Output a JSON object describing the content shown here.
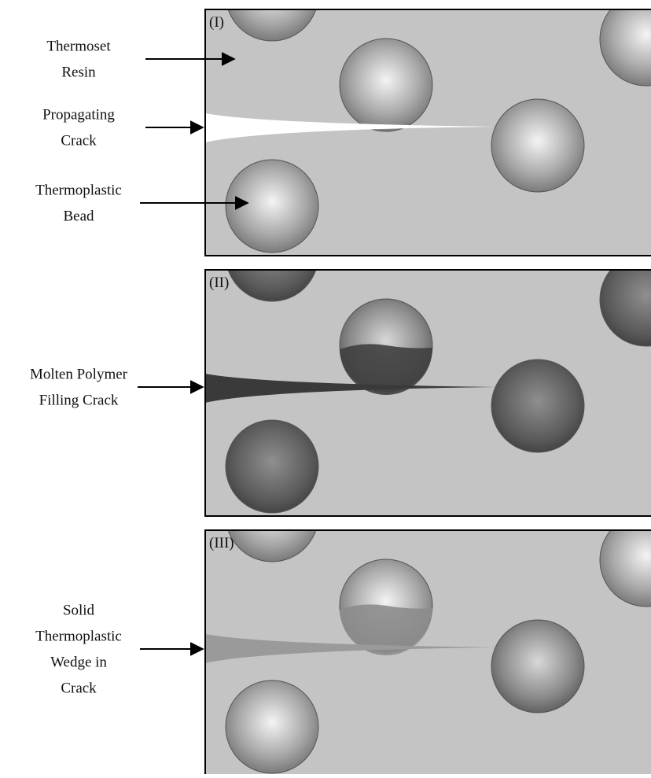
{
  "panels": [
    {
      "label": "(I)",
      "annotations": [
        {
          "lines": [
            "Thermoset",
            "Resin"
          ]
        },
        {
          "lines": [
            "Propagating",
            "Crack"
          ]
        },
        {
          "lines": [
            "Thermoplastic",
            "Bead"
          ]
        }
      ]
    },
    {
      "label": "(II)",
      "annotations": [
        {
          "lines": [
            "Molten Polymer",
            "Filling Crack"
          ]
        }
      ]
    },
    {
      "label": "(III)",
      "annotations": [
        {
          "lines": [
            "Solid",
            "Thermoplastic",
            "Wedge in",
            "Crack"
          ]
        }
      ]
    }
  ]
}
